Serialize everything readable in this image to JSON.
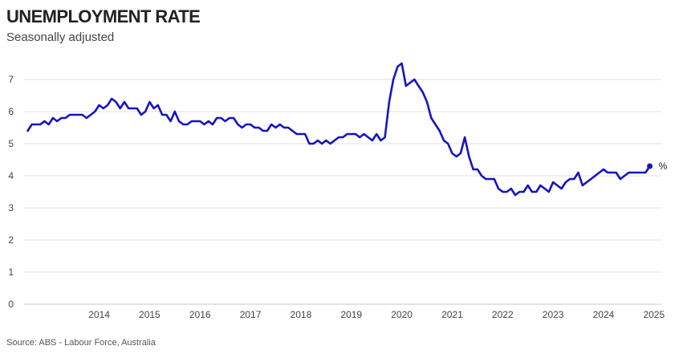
{
  "title": "UNEMPLOYMENT RATE",
  "subtitle": "Seasonally adjusted",
  "source": "Source: ABS - Labour Force, Australia",
  "unit": "%",
  "colors": {
    "line": "#1515c0",
    "grid": "#e2e2e2",
    "baseline": "#c8c8c8"
  },
  "chart_data": {
    "type": "line",
    "title": "UNEMPLOYMENT RATE",
    "subtitle": "Seasonally adjusted",
    "ylabel": "",
    "xlabel": "",
    "ylim": [
      0,
      7.5
    ],
    "yticks": [
      0,
      1,
      2,
      3,
      4,
      5,
      6,
      7
    ],
    "xticks": [
      "2014",
      "2015",
      "2016",
      "2017",
      "2018",
      "2019",
      "2020",
      "2021",
      "2022",
      "2023",
      "2024",
      "2025"
    ],
    "grid": true,
    "frequency": "monthly",
    "start": "2013-02",
    "end": "2025-06",
    "values": [
      5.4,
      5.6,
      5.6,
      5.6,
      5.7,
      5.6,
      5.8,
      5.7,
      5.8,
      5.8,
      5.9,
      5.9,
      5.9,
      5.9,
      5.8,
      5.9,
      6.0,
      6.2,
      6.1,
      6.2,
      6.4,
      6.3,
      6.1,
      6.3,
      6.1,
      6.1,
      6.1,
      5.9,
      6.0,
      6.3,
      6.1,
      6.2,
      5.9,
      5.9,
      5.7,
      6.0,
      5.7,
      5.6,
      5.6,
      5.7,
      5.7,
      5.7,
      5.6,
      5.7,
      5.6,
      5.8,
      5.8,
      5.7,
      5.8,
      5.8,
      5.6,
      5.5,
      5.6,
      5.6,
      5.5,
      5.5,
      5.4,
      5.4,
      5.6,
      5.5,
      5.6,
      5.5,
      5.5,
      5.4,
      5.3,
      5.3,
      5.3,
      5.0,
      5.0,
      5.1,
      5.0,
      5.1,
      5.0,
      5.1,
      5.2,
      5.2,
      5.3,
      5.3,
      5.3,
      5.2,
      5.3,
      5.2,
      5.1,
      5.3,
      5.1,
      5.2,
      6.3,
      7.0,
      7.4,
      7.5,
      6.8,
      6.9,
      7.0,
      6.8,
      6.6,
      6.3,
      5.8,
      5.6,
      5.4,
      5.1,
      5.0,
      4.7,
      4.6,
      4.7,
      5.2,
      4.6,
      4.2,
      4.2,
      4.0,
      3.9,
      3.9,
      3.9,
      3.6,
      3.5,
      3.5,
      3.6,
      3.4,
      3.5,
      3.5,
      3.7,
      3.5,
      3.5,
      3.7,
      3.6,
      3.5,
      3.8,
      3.7,
      3.6,
      3.8,
      3.9,
      3.9,
      4.1,
      3.7,
      3.8,
      3.9,
      4.0,
      4.1,
      4.2,
      4.1,
      4.1,
      4.1,
      3.9,
      4.0,
      4.1,
      4.1,
      4.1,
      4.1,
      4.1,
      4.3
    ]
  }
}
